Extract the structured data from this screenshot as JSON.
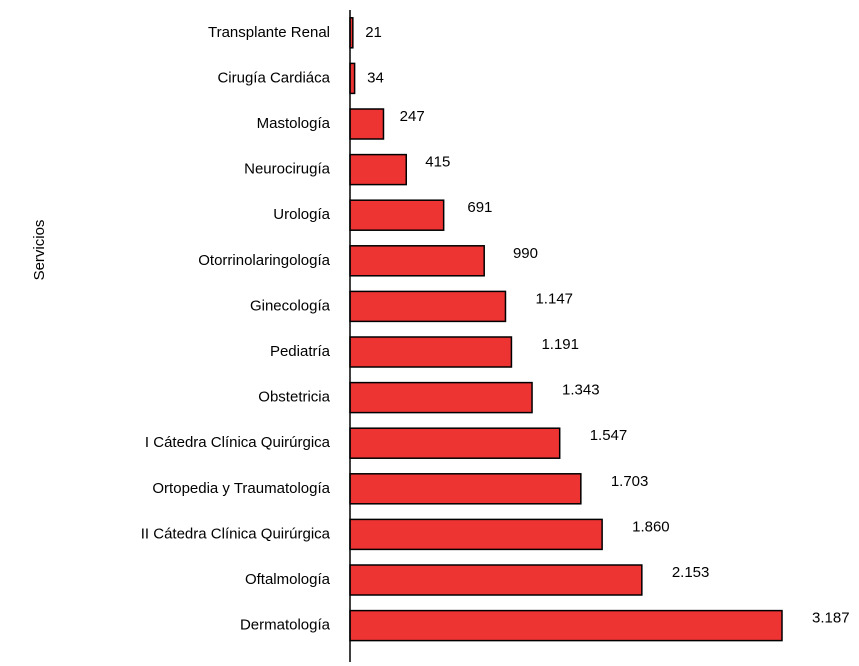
{
  "chart_data": {
    "type": "hbar",
    "y_label": "Servicios",
    "categories": [
      "Transplante Renal",
      "Cirugía Cardiáca",
      "Mastología",
      "Neurocirugía",
      "Urología",
      "Otorrinolaringología",
      "Ginecología",
      "Pediatría",
      "Obstetricia",
      "I Cátedra Clínica Quirúrgica",
      "Ortopedia y Traumatología",
      "II Cátedra Clínica Quirúrgica",
      "Oftalmología",
      "Dermatología"
    ],
    "values": [
      21,
      34,
      247,
      415,
      691,
      990,
      1147,
      1191,
      1343,
      1547,
      1703,
      1860,
      2153,
      3187
    ],
    "value_labels": [
      "21",
      "34",
      "247",
      "415",
      "691",
      "990",
      "1.147",
      "1.191",
      "1.343",
      "1.547",
      "1.703",
      "1.860",
      "2.153",
      "3.187"
    ],
    "color": "#ee3333"
  }
}
